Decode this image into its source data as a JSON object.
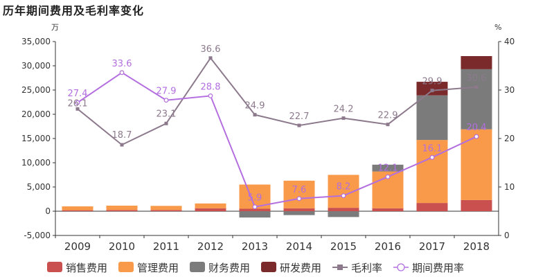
{
  "chart_data": {
    "type": "bar",
    "title": "历年期间费用及毛利率变化",
    "categories": [
      "2009",
      "2010",
      "2011",
      "2012",
      "2013",
      "2014",
      "2015",
      "2016",
      "2017",
      "2018"
    ],
    "y_left_unit": "万",
    "y_right_unit": "%",
    "ylim_left": [
      -5000,
      35000
    ],
    "ylim_right": [
      0,
      40
    ],
    "y_left_ticks": [
      "-5,000",
      "0",
      "5,000",
      "10,000",
      "15,000",
      "20,000",
      "25,000",
      "30,000",
      "35,000"
    ],
    "y_left_tick_values": [
      -5000,
      0,
      5000,
      10000,
      15000,
      20000,
      25000,
      30000,
      35000
    ],
    "y_right_ticks": [
      "0",
      "10",
      "20",
      "30",
      "40"
    ],
    "y_right_tick_values": [
      0,
      10,
      20,
      30,
      40
    ],
    "stacked": true,
    "series": [
      {
        "name": "销售费用",
        "kind": "bar",
        "color": "#c9504f",
        "values": [
          200,
          250,
          250,
          600,
          500,
          600,
          700,
          600,
          1700,
          2300
        ]
      },
      {
        "name": "管理费用",
        "kind": "bar",
        "color": "#f89a49",
        "values": [
          800,
          900,
          850,
          1000,
          5000,
          5700,
          6800,
          7600,
          13000,
          14600
        ]
      },
      {
        "name": "财务费用",
        "kind": "bar",
        "color": "#7b7b7b",
        "values": [
          0,
          0,
          0,
          0,
          -1300,
          -800,
          -1200,
          1400,
          9200,
          12400
        ]
      },
      {
        "name": "研发费用",
        "kind": "bar",
        "color": "#7a2a2a",
        "values": [
          0,
          0,
          0,
          0,
          0,
          0,
          0,
          0,
          2800,
          2700
        ]
      },
      {
        "name": "毛利率",
        "kind": "line",
        "axis": "right",
        "color": "#8c7a8c",
        "values": [
          26.1,
          18.7,
          23.1,
          36.6,
          24.9,
          22.7,
          24.2,
          22.9,
          29.9,
          30.6
        ]
      },
      {
        "name": "期间费用率",
        "kind": "line",
        "axis": "right",
        "color": "#b36ee0",
        "values": [
          27.4,
          33.6,
          27.9,
          28.8,
          5.9,
          7.6,
          8.2,
          12.1,
          16.1,
          20.4
        ]
      }
    ],
    "grid": false,
    "legend_position": "bottom"
  }
}
